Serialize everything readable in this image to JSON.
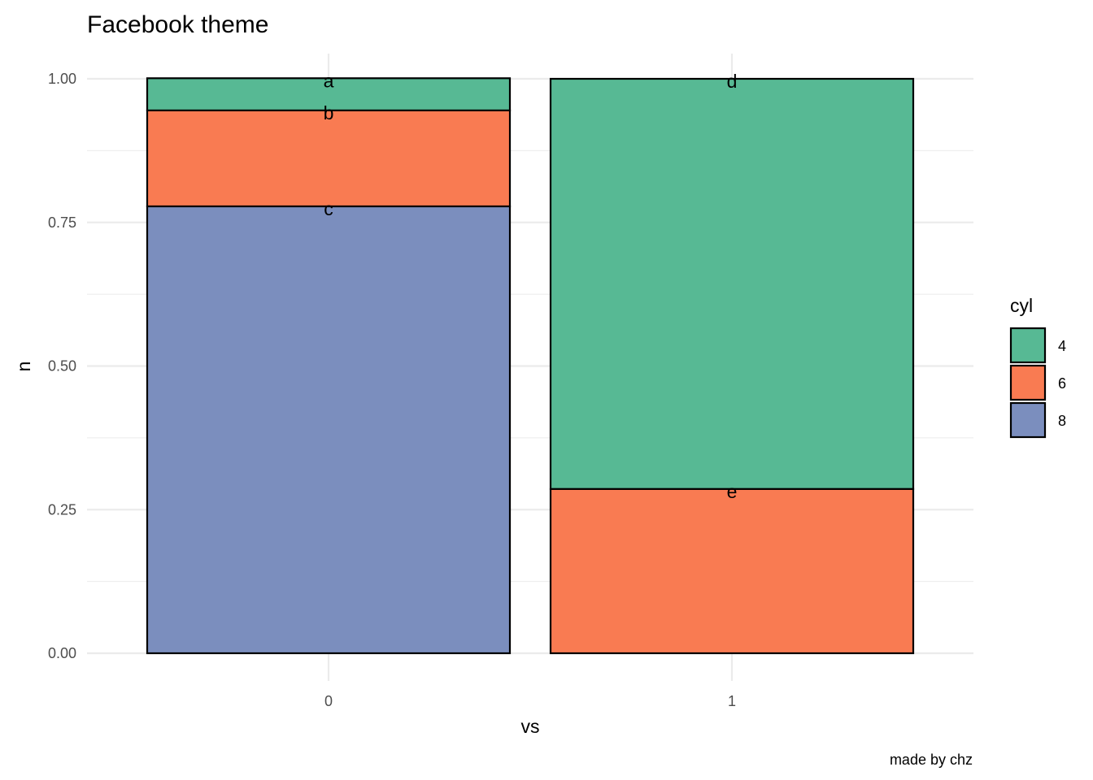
{
  "chart_data": {
    "type": "bar",
    "stacked": true,
    "title": "Facebook theme",
    "xlabel": "vs",
    "ylabel": "n",
    "caption": "made by chz",
    "categories": [
      "0",
      "1"
    ],
    "ylim": [
      0,
      1
    ],
    "yticks": [
      "0.00",
      "0.25",
      "0.50",
      "0.75",
      "1.00"
    ],
    "grid": true,
    "legend": {
      "title": "cyl",
      "position": "right",
      "entries": [
        {
          "label": "4",
          "color": "#57B994"
        },
        {
          "label": "6",
          "color": "#F97B52"
        },
        {
          "label": "8",
          "color": "#7B8EBE"
        }
      ]
    },
    "series": [
      {
        "name": "4",
        "color": "#57B994",
        "values": [
          0.056,
          0.714
        ]
      },
      {
        "name": "6",
        "color": "#F97B52",
        "values": [
          0.167,
          0.286
        ]
      },
      {
        "name": "8",
        "color": "#7B8EBE",
        "values": [
          0.778,
          0.0
        ]
      }
    ],
    "segment_labels": [
      {
        "category": "0",
        "series": "4",
        "text": "a"
      },
      {
        "category": "0",
        "series": "6",
        "text": "b"
      },
      {
        "category": "0",
        "series": "8",
        "text": "c"
      },
      {
        "category": "1",
        "series": "4",
        "text": "d"
      },
      {
        "category": "1",
        "series": "6",
        "text": "e"
      }
    ]
  }
}
